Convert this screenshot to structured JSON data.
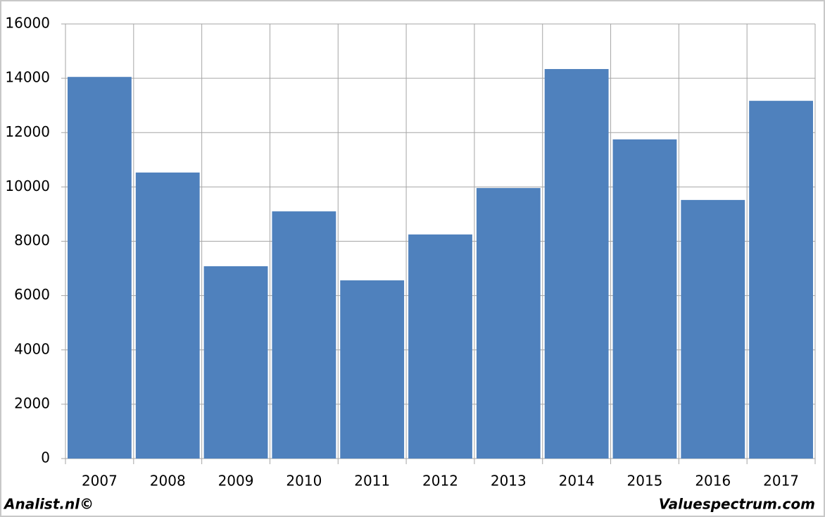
{
  "chart_data": {
    "type": "bar",
    "categories": [
      "2007",
      "2008",
      "2009",
      "2010",
      "2011",
      "2012",
      "2013",
      "2014",
      "2015",
      "2016",
      "2017"
    ],
    "values": [
      14050,
      10530,
      7080,
      9100,
      6560,
      8250,
      9960,
      14340,
      11750,
      9520,
      13170
    ],
    "color": "#4f81bd",
    "ylim": [
      0,
      16000
    ],
    "yticks": [
      0,
      2000,
      4000,
      6000,
      8000,
      10000,
      12000,
      14000,
      16000
    ],
    "grid": true,
    "footer_left": "Analist.nl©",
    "footer_right": "Valuespectrum.com"
  }
}
